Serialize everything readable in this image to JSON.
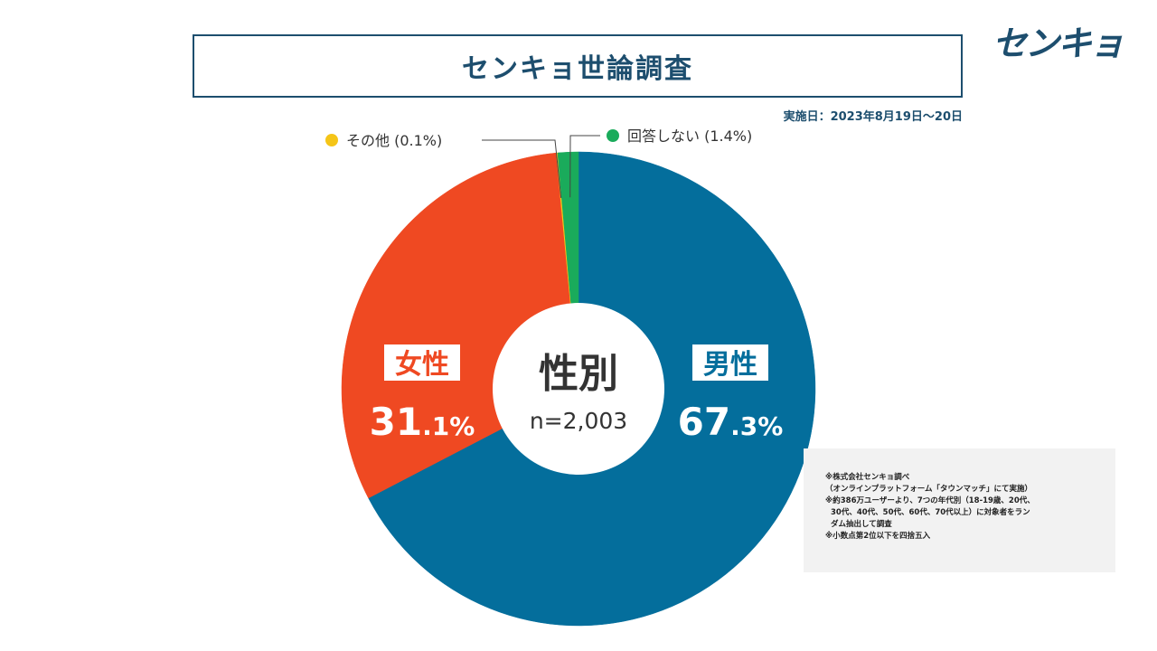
{
  "header": {
    "title": "センキョ世論調査",
    "logo_text": "センキョ",
    "survey_date": "実施日：2023年8月19日～20日"
  },
  "chart_data": {
    "type": "pie",
    "title": "性別",
    "center_label": "性別",
    "sample_size": "n=2,003",
    "start_angle_deg": 0,
    "direction": "clockwise",
    "slices": [
      {
        "name": "男性",
        "value": 67.3,
        "display_int": "67",
        "display_dec": ".3%",
        "color": "#046e9c",
        "label_mode": "inside"
      },
      {
        "name": "女性",
        "value": 31.1,
        "display_int": "31",
        "display_dec": ".1%",
        "color": "#ef4922",
        "label_mode": "inside"
      },
      {
        "name": "その他",
        "value": 0.1,
        "legend_text": "その他 (0.1%)",
        "color": "#f5c518",
        "label_mode": "callout"
      },
      {
        "name": "回答しない",
        "value": 1.4,
        "legend_text": "回答しない (1.4%)",
        "color": "#1aab5b",
        "label_mode": "callout"
      }
    ]
  },
  "notes": [
    "※株式会社センキョ調べ",
    "（オンラインプラットフォーム「タウンマッチ」にて実施）",
    "※約386万ユーザーより、7つの年代別（18-19歳、20代、",
    "30代、40代、50代、60代、70代以上）に対象者をラン",
    "ダム抽出して調査",
    "※小数点第2位以下を四捨五入"
  ]
}
